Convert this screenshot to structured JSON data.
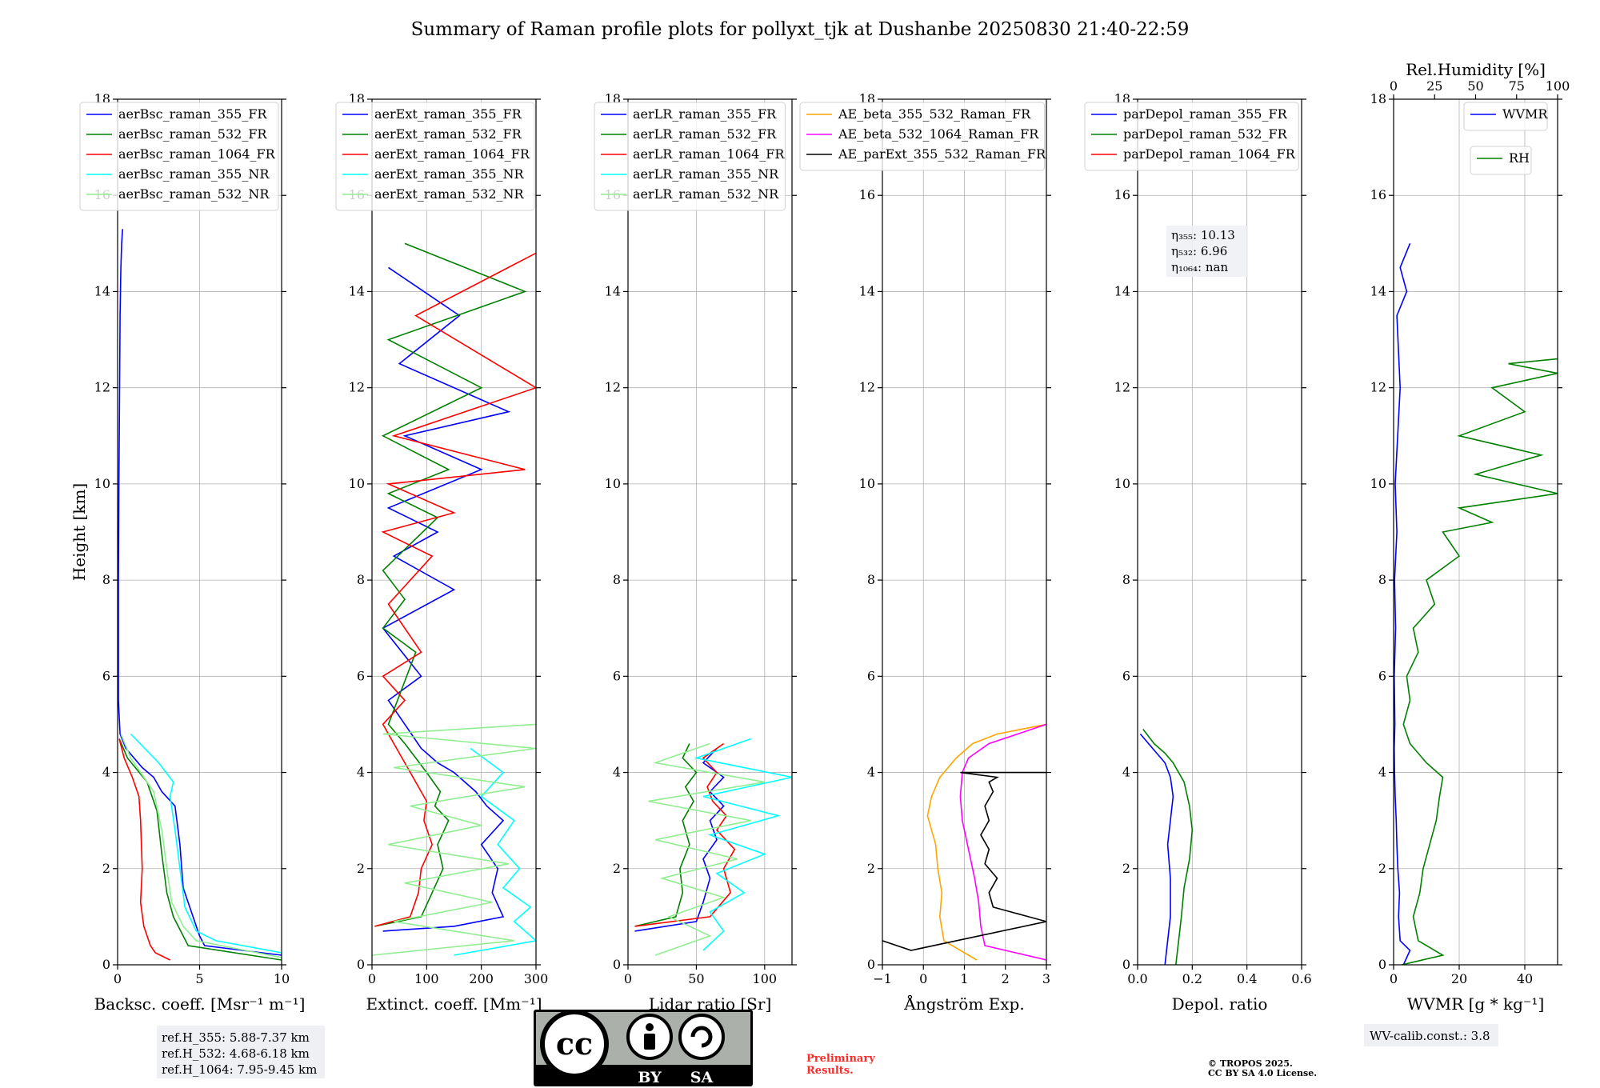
{
  "title": "Summary of Raman profile plots for pollyxt_tjk at Dushanbe 20250830 21:40-22:59",
  "chart_data": [
    {
      "id": "backscatter",
      "type": "line",
      "xlabel": "Backsc. coeff. [Msr⁻¹ m⁻¹]",
      "ylabel": "Height [km]",
      "xlim": [
        0,
        10
      ],
      "ylim": [
        0,
        18
      ],
      "xticks": [
        0,
        5,
        10
      ],
      "yticks": [
        0,
        2,
        4,
        6,
        8,
        10,
        12,
        14,
        16,
        18
      ],
      "grid": true,
      "legend": "top-left",
      "series": [
        {
          "name": "aerBsc_raman_355_FR",
          "color": "#0000ff",
          "x": [
            10.0,
            5.3,
            5.0,
            4.6,
            4.0,
            3.8,
            3.5,
            2.7,
            2.2,
            1.5,
            0.5,
            0.15,
            0.05,
            0.05,
            0.08,
            0.12,
            0.15,
            0.2,
            0.25,
            0.3
          ],
          "y": [
            0.2,
            0.4,
            0.6,
            1.0,
            1.6,
            2.5,
            3.3,
            3.6,
            3.9,
            4.1,
            4.5,
            4.8,
            5.5,
            8.0,
            10.0,
            12.0,
            13.5,
            14.5,
            15.0,
            15.3
          ]
        },
        {
          "name": "aerBsc_raman_532_FR",
          "color": "#008000",
          "x": [
            10.0,
            4.3,
            4.0,
            3.4,
            3.0,
            2.7,
            2.4,
            1.8,
            0.6,
            0.1
          ],
          "y": [
            0.1,
            0.4,
            0.6,
            1.0,
            1.5,
            2.3,
            3.2,
            3.8,
            4.3,
            4.7
          ]
        },
        {
          "name": "aerBsc_raman_1064_FR",
          "color": "#ff0000",
          "x": [
            3.2,
            2.3,
            2.0,
            1.6,
            1.4,
            1.5,
            1.4,
            1.3,
            0.9,
            0.4,
            0.1
          ],
          "y": [
            0.1,
            0.25,
            0.4,
            0.8,
            1.3,
            2.0,
            3.0,
            3.5,
            3.9,
            4.3,
            4.7
          ]
        },
        {
          "name": "aerBsc_raman_355_NR",
          "color": "#00ffff",
          "x": [
            10.0,
            6.0,
            4.8,
            4.1,
            3.8,
            3.5,
            3.2,
            3.4,
            2.5,
            0.8
          ],
          "y": [
            0.25,
            0.5,
            0.7,
            1.2,
            2.0,
            2.8,
            3.5,
            3.8,
            4.2,
            4.8
          ]
        },
        {
          "name": "aerBsc_raman_532_NR",
          "color": "#90ee90",
          "x": [
            10.0,
            4.8,
            4.0,
            3.3,
            3.0,
            2.7,
            2.2,
            0.8,
            0.2
          ],
          "y": [
            0.15,
            0.5,
            0.8,
            1.3,
            2.0,
            2.8,
            3.6,
            4.3,
            4.8
          ]
        }
      ]
    },
    {
      "id": "extinction",
      "type": "line",
      "xlabel": "Extinct. coeff. [Mm⁻¹]",
      "xlim": [
        0,
        300
      ],
      "ylim": [
        0,
        18
      ],
      "xticks": [
        0,
        100,
        200,
        300
      ],
      "yticks": [
        0,
        2,
        4,
        6,
        8,
        10,
        12,
        14,
        16,
        18
      ],
      "grid": true,
      "legend": "top-left",
      "series": [
        {
          "name": "aerExt_raman_355_FR",
          "color": "#0000ff",
          "x": [
            20,
            150,
            240,
            220,
            230,
            200,
            240,
            210,
            190,
            150,
            120,
            90,
            60,
            30,
            90,
            20,
            150,
            40,
            120,
            30,
            200,
            60,
            250,
            50,
            160,
            30
          ],
          "y": [
            0.7,
            0.8,
            1.0,
            1.5,
            2.0,
            2.5,
            3.0,
            3.3,
            3.6,
            4.0,
            4.2,
            4.5,
            5.0,
            5.5,
            6.0,
            7.0,
            7.8,
            8.5,
            9.0,
            9.5,
            10.3,
            11.0,
            11.5,
            12.5,
            13.5,
            14.5
          ]
        },
        {
          "name": "aerExt_raman_532_FR",
          "color": "#008000",
          "x": [
            5,
            90,
            110,
            130,
            120,
            140,
            115,
            125,
            100,
            80,
            60,
            30,
            80,
            20,
            60,
            20,
            120,
            30,
            140,
            20,
            200,
            30,
            280,
            60
          ],
          "y": [
            0.8,
            1.0,
            1.5,
            2.0,
            2.5,
            3.0,
            3.3,
            3.6,
            4.0,
            4.3,
            4.6,
            5.0,
            6.5,
            7.0,
            7.6,
            8.2,
            9.3,
            9.8,
            10.3,
            11.0,
            12.0,
            13.0,
            14.0,
            15.0
          ]
        },
        {
          "name": "aerExt_raman_1064_FR",
          "color": "#ff0000",
          "x": [
            5,
            70,
            85,
            90,
            110,
            95,
            100,
            80,
            60,
            40,
            20,
            60,
            20,
            90,
            30,
            110,
            20,
            150,
            30,
            280,
            40,
            300,
            80,
            300
          ],
          "y": [
            0.8,
            1.0,
            1.5,
            2.0,
            2.5,
            3.0,
            3.4,
            3.8,
            4.2,
            4.6,
            5.0,
            5.5,
            6.0,
            6.5,
            7.5,
            8.5,
            9.0,
            9.4,
            10.0,
            10.3,
            11.0,
            12.0,
            13.5,
            14.8
          ]
        },
        {
          "name": "aerExt_raman_355_NR",
          "color": "#00ffff",
          "x": [
            150,
            300,
            260,
            290,
            240,
            270,
            230,
            260,
            200,
            240,
            180
          ],
          "y": [
            0.2,
            0.5,
            0.9,
            1.2,
            1.6,
            2.0,
            2.5,
            3.0,
            3.5,
            4.0,
            4.5
          ]
        },
        {
          "name": "aerExt_raman_532_NR",
          "color": "#90ee90",
          "x": [
            0,
            260,
            40,
            220,
            60,
            250,
            30,
            200,
            70,
            280,
            40,
            300,
            20,
            300
          ],
          "y": [
            0.2,
            0.5,
            0.9,
            1.3,
            1.7,
            2.1,
            2.5,
            2.9,
            3.3,
            3.7,
            4.1,
            4.5,
            4.8,
            5.0
          ]
        }
      ]
    },
    {
      "id": "lidar_ratio",
      "type": "line",
      "xlabel": "Lidar ratio [Sr]",
      "xlim": [
        0,
        120
      ],
      "ylim": [
        0,
        18
      ],
      "xticks": [
        0,
        50,
        100
      ],
      "yticks": [
        0,
        2,
        4,
        6,
        8,
        10,
        12,
        14,
        16,
        18
      ],
      "grid": true,
      "legend": "top-left",
      "series": [
        {
          "name": "aerLR_raman_355_FR",
          "color": "#0000ff",
          "x": [
            5,
            50,
            55,
            60,
            55,
            65,
            60,
            70,
            60,
            70,
            55,
            65
          ],
          "y": [
            0.7,
            0.9,
            1.3,
            1.8,
            2.2,
            2.6,
            3.0,
            3.3,
            3.6,
            3.9,
            4.2,
            4.5
          ]
        },
        {
          "name": "aerLR_raman_532_FR",
          "color": "#008000",
          "x": [
            5,
            35,
            40,
            38,
            45,
            40,
            48,
            42,
            50,
            40,
            45
          ],
          "y": [
            0.8,
            1.0,
            1.5,
            2.0,
            2.5,
            3.0,
            3.4,
            3.7,
            4.0,
            4.3,
            4.6
          ]
        },
        {
          "name": "aerLR_raman_1064_FR",
          "color": "#ff0000",
          "x": [
            5,
            60,
            75,
            70,
            78,
            65,
            72,
            62,
            58,
            65,
            55,
            70
          ],
          "y": [
            0.8,
            1.0,
            1.5,
            2.0,
            2.4,
            2.8,
            3.1,
            3.4,
            3.7,
            4.0,
            4.3,
            4.6
          ]
        },
        {
          "name": "aerLR_raman_355_NR",
          "color": "#00ffff",
          "x": [
            55,
            70,
            60,
            85,
            65,
            100,
            60,
            110,
            55,
            120,
            50,
            90
          ],
          "y": [
            0.3,
            0.7,
            1.1,
            1.5,
            1.9,
            2.3,
            2.7,
            3.1,
            3.5,
            3.9,
            4.3,
            4.7
          ]
        },
        {
          "name": "aerLR_raman_532_NR",
          "color": "#90ee90",
          "x": [
            20,
            60,
            30,
            70,
            25,
            80,
            20,
            90,
            15,
            100,
            20,
            60
          ],
          "y": [
            0.2,
            0.6,
            1.0,
            1.4,
            1.8,
            2.2,
            2.6,
            3.0,
            3.4,
            3.8,
            4.2,
            4.6
          ]
        }
      ]
    },
    {
      "id": "angstrom",
      "type": "line",
      "xlabel": "Ångström Exp.",
      "xlim": [
        -1,
        3
      ],
      "ylim": [
        0,
        18
      ],
      "xticks": [
        -1,
        0,
        1,
        2,
        3
      ],
      "yticks": [
        0,
        2,
        4,
        6,
        8,
        10,
        12,
        14,
        16,
        18
      ],
      "grid": true,
      "legend": "top-right",
      "series": [
        {
          "name": "AE_beta_355_532_Raman_FR",
          "color": "#ffa500",
          "x": [
            1.3,
            0.5,
            0.4,
            0.45,
            0.35,
            0.3,
            0.2,
            0.1,
            0.2,
            0.4,
            0.8,
            1.2,
            1.8,
            3.0
          ],
          "y": [
            0.1,
            0.5,
            1.0,
            1.5,
            2.0,
            2.5,
            2.8,
            3.1,
            3.5,
            3.9,
            4.3,
            4.6,
            4.8,
            5.0
          ]
        },
        {
          "name": "AE_beta_532_1064_Raman_FR",
          "color": "#ff00ff",
          "x": [
            3.0,
            1.5,
            1.4,
            1.35,
            1.25,
            1.1,
            0.95,
            0.9,
            0.95,
            1.1,
            1.6,
            2.3,
            3.0
          ],
          "y": [
            0.1,
            0.4,
            0.8,
            1.3,
            1.8,
            2.4,
            3.0,
            3.5,
            4.0,
            4.3,
            4.6,
            4.8,
            5.0
          ]
        },
        {
          "name": "AE_parExt_355_532_Raman_FR",
          "color": "#000000",
          "x": [
            -1.0,
            -0.3,
            3.0,
            1.7,
            1.6,
            1.8,
            1.5,
            1.6,
            1.4,
            1.6,
            1.5,
            1.7,
            1.6,
            1.8,
            0.9,
            3.0
          ],
          "y": [
            0.5,
            0.3,
            0.9,
            1.2,
            1.5,
            1.8,
            2.1,
            2.4,
            2.7,
            3.0,
            3.3,
            3.6,
            3.8,
            3.9,
            4.0,
            4.0
          ]
        }
      ]
    },
    {
      "id": "depolarization",
      "type": "line",
      "xlabel": "Depol. ratio",
      "xlim": [
        0,
        0.6
      ],
      "ylim": [
        0,
        18
      ],
      "xticks": [
        0.0,
        0.2,
        0.4,
        0.6
      ],
      "xticklabels": [
        "0.0",
        "0.2",
        "0.4",
        "0.6"
      ],
      "yticks": [
        0,
        2,
        4,
        6,
        8,
        10,
        12,
        14,
        16,
        18
      ],
      "grid": true,
      "legend": "top-left",
      "series": [
        {
          "name": "parDepol_raman_355_FR",
          "color": "#0000ff",
          "x": [
            0.1,
            0.11,
            0.12,
            0.12,
            0.11,
            0.12,
            0.13,
            0.12,
            0.1,
            0.07,
            0.04,
            0.01
          ],
          "y": [
            0.0,
            0.5,
            1.0,
            1.8,
            2.5,
            3.0,
            3.5,
            3.9,
            4.2,
            4.4,
            4.6,
            4.8
          ]
        },
        {
          "name": "parDepol_raman_532_FR",
          "color": "#008000",
          "x": [
            0.14,
            0.15,
            0.16,
            0.17,
            0.19,
            0.2,
            0.19,
            0.17,
            0.13,
            0.1,
            0.06,
            0.02
          ],
          "y": [
            0.0,
            0.5,
            1.0,
            1.6,
            2.2,
            2.8,
            3.3,
            3.8,
            4.2,
            4.4,
            4.6,
            4.9
          ]
        },
        {
          "name": "parDepol_raman_1064_FR",
          "color": "#ff0000",
          "x": [],
          "y": []
        }
      ],
      "annotations": [
        "η₃₅₅: 10.13",
        "η₅₃₂: 6.96",
        "η₁₀₆₄: nan"
      ]
    },
    {
      "id": "water_vapor",
      "type": "line",
      "xlabel": "WVMR [g * kg⁻¹]",
      "x2label": "Rel.Humidity [%]",
      "xlim": [
        0,
        50
      ],
      "x2lim": [
        0,
        100
      ],
      "ylim": [
        0,
        18
      ],
      "xticks": [
        0,
        20,
        40
      ],
      "x2ticks": [
        0,
        25,
        50,
        75,
        100
      ],
      "yticks": [
        0,
        2,
        4,
        6,
        8,
        10,
        12,
        14,
        16,
        18
      ],
      "grid": true,
      "legend": "top-right",
      "series": [
        {
          "name": "WVMR",
          "color": "#0000ff",
          "x": [
            3.0,
            5.0,
            2.0,
            1.5,
            1.8,
            1.3,
            1.0,
            0.8,
            0.5,
            0.3,
            0.2,
            0.4,
            0.2,
            0.6,
            0.3,
            1.0,
            0.5,
            2.0,
            1.0,
            4.0,
            2.0,
            5.0
          ],
          "y": [
            0.0,
            0.3,
            0.5,
            1.0,
            1.5,
            2.0,
            2.5,
            3.0,
            3.5,
            4.0,
            4.5,
            5.0,
            6.0,
            7.0,
            8.0,
            9.0,
            10.0,
            12.0,
            13.5,
            14.0,
            14.5,
            15.0
          ]
        },
        {
          "name": "RH",
          "color": "#008000",
          "x": [
            5,
            30,
            15,
            12,
            16,
            18,
            22,
            26,
            28,
            30,
            20,
            10,
            6,
            10,
            8,
            15,
            12,
            25,
            20,
            40,
            30,
            60,
            40,
            100,
            50,
            90,
            40,
            80,
            60,
            100,
            70,
            100
          ],
          "y": [
            0.0,
            0.2,
            0.5,
            1.0,
            1.5,
            2.0,
            2.5,
            3.0,
            3.5,
            3.9,
            4.2,
            4.6,
            5.0,
            5.5,
            6.0,
            6.5,
            7.0,
            7.5,
            8.0,
            8.5,
            9.0,
            9.2,
            9.5,
            9.8,
            10.2,
            10.6,
            11.0,
            11.5,
            12.0,
            12.3,
            12.5,
            12.6
          ]
        }
      ]
    }
  ],
  "info": {
    "ref_heights": [
      "ref.H_355: 5.88-7.37 km",
      "ref.H_532: 4.68-6.18 km",
      "ref.H_1064: 7.95-9.45 km"
    ],
    "wv_calib": "WV-calib.const.: 3.8",
    "preliminary": [
      "Preliminary",
      "Results."
    ],
    "copyright": [
      "© TROPOS 2025.",
      "CC BY SA 4.0 License."
    ],
    "license_badge": {
      "cc": "cc",
      "by": "BY",
      "sa": "SA"
    }
  }
}
